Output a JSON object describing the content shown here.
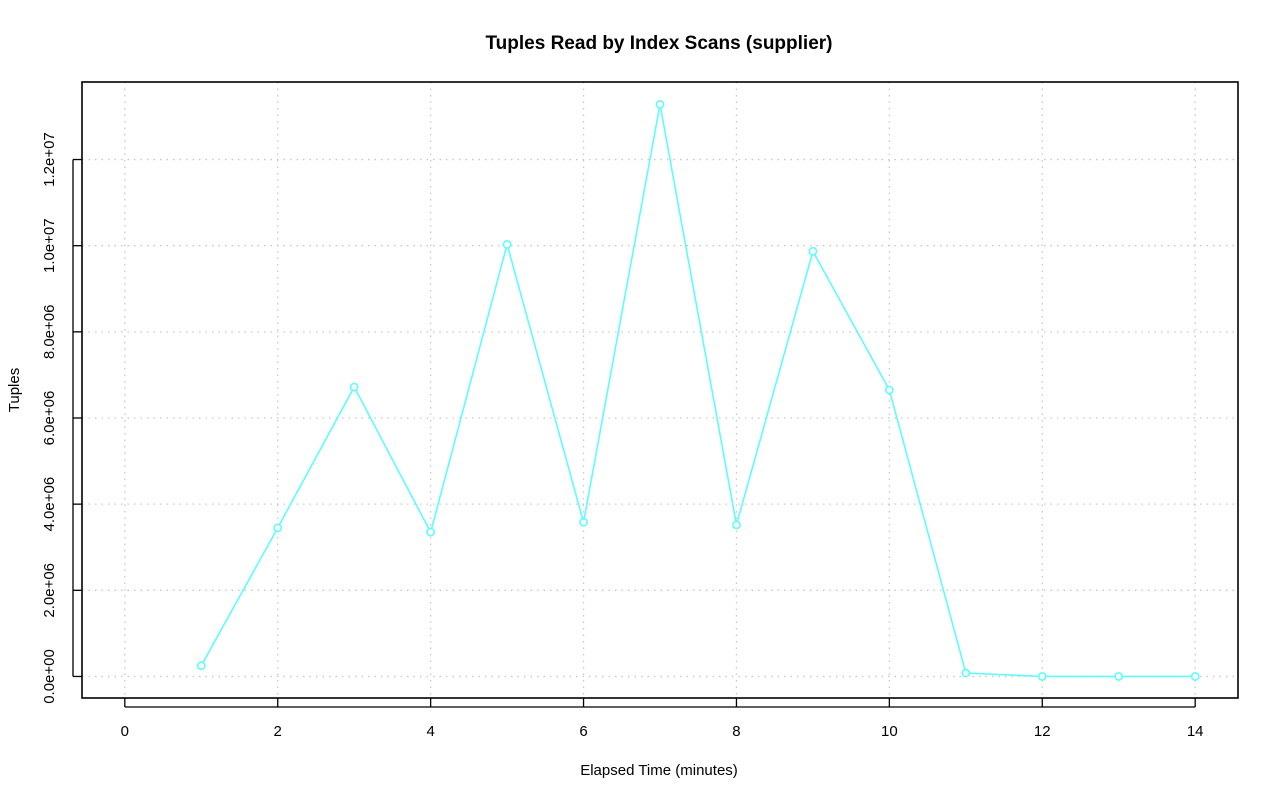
{
  "chart_data": {
    "type": "line",
    "title": "Tuples Read by Index Scans (supplier)",
    "xlabel": "Elapsed Time (minutes)",
    "ylabel": "Tuples",
    "xlim": [
      -0.56,
      14.56
    ],
    "ylim": [
      -500000,
      13800000
    ],
    "xticks": [
      0,
      2,
      4,
      6,
      8,
      10,
      12,
      14
    ],
    "xtick_labels": [
      "0",
      "2",
      "4",
      "6",
      "8",
      "10",
      "12",
      "14"
    ],
    "yticks": [
      0,
      2000000,
      4000000,
      6000000,
      8000000,
      10000000,
      12000000
    ],
    "ytick_labels": [
      "0.0e+00",
      "2.0e+06",
      "4.0e+06",
      "6.0e+06",
      "8.0e+06",
      "1.0e+07",
      "1.2e+07"
    ],
    "grid": true,
    "marker": "open-circle",
    "series": [
      {
        "color": "#5ffcff",
        "x": [
          1,
          2,
          3,
          4,
          5,
          6,
          7,
          8,
          9,
          10,
          11,
          12,
          13,
          14
        ],
        "y": [
          250000,
          3450000,
          6720000,
          3350000,
          10030000,
          3580000,
          13280000,
          3520000,
          9870000,
          6650000,
          80000,
          0,
          0,
          0
        ]
      }
    ]
  }
}
